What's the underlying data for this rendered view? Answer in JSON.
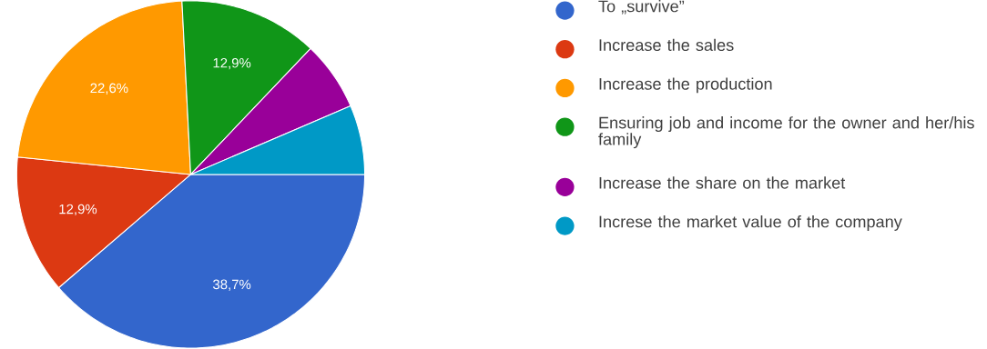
{
  "chart_data": {
    "type": "pie",
    "categories": [
      "To „survive”",
      "Increase the sales",
      "Increase the production",
      "Ensuring job and income for the owner and her/his family",
      "Increase the share on the market",
      "Increse the market value of the company"
    ],
    "values": [
      38.7,
      12.9,
      22.6,
      12.9,
      6.45,
      6.45
    ],
    "colors": [
      "#3366cc",
      "#dc3912",
      "#ff9900",
      "#109618",
      "#990099",
      "#0099c6"
    ],
    "value_labels": [
      "38,7%",
      "12,9%",
      "22,6%",
      "12,9%",
      null,
      null
    ],
    "legend": "right"
  }
}
